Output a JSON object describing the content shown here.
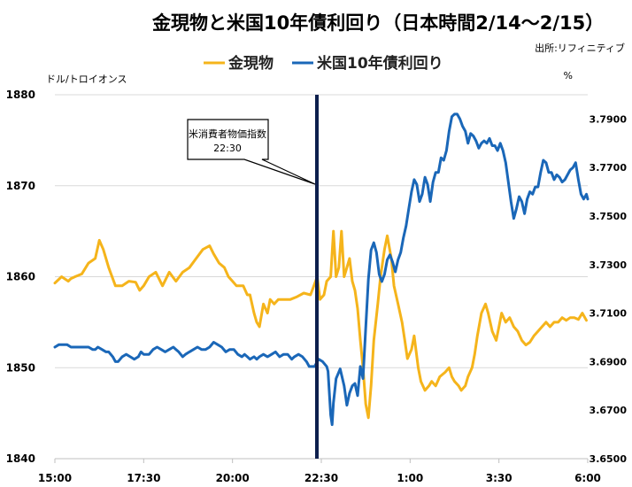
{
  "chart_data": {
    "type": "line",
    "title": "金現物と米国10年債利回り（日本時間2/14～2/15）",
    "source": "出所:リフィニティブ",
    "left_axis": {
      "label": "ドル/トロイオンス",
      "ylim": [
        1840,
        1880
      ],
      "ticks": [
        "1840",
        "1850",
        "1860",
        "1870",
        "1880"
      ]
    },
    "right_axis": {
      "label": "%",
      "ylim": [
        3.65,
        3.8
      ],
      "ticks": [
        "3.6500",
        "3.6700",
        "3.6900",
        "3.7100",
        "3.7300",
        "3.7500",
        "3.7700",
        "3.7900"
      ]
    },
    "x_ticks": [
      "15:00",
      "17:30",
      "20:00",
      "22:30",
      "1:00",
      "3:30",
      "6:00"
    ],
    "grid": true,
    "legend_position": "top",
    "annotation": {
      "lines": [
        "米消費者物価指数",
        "22:30"
      ],
      "x_label": "22:30",
      "color": "#0d1f4d"
    },
    "series": [
      {
        "name": "金現物",
        "axis": "left",
        "color": "#f5b41b",
        "points": [
          [
            0,
            1859.3
          ],
          [
            5,
            1860
          ],
          [
            10,
            1859.5
          ],
          [
            12,
            1859.8
          ],
          [
            15,
            1860
          ],
          [
            20,
            1860.3
          ],
          [
            25,
            1861.5
          ],
          [
            30,
            1862
          ],
          [
            33,
            1864
          ],
          [
            36,
            1863
          ],
          [
            40,
            1861
          ],
          [
            45,
            1859
          ],
          [
            50,
            1859
          ],
          [
            55,
            1859.5
          ],
          [
            60,
            1859.4
          ],
          [
            63,
            1858.5
          ],
          [
            66,
            1859
          ],
          [
            70,
            1860
          ],
          [
            75,
            1860.5
          ],
          [
            80,
            1859
          ],
          [
            85,
            1860.5
          ],
          [
            90,
            1859.5
          ],
          [
            95,
            1860.5
          ],
          [
            100,
            1861
          ],
          [
            105,
            1862
          ],
          [
            110,
            1863
          ],
          [
            115,
            1863.4
          ],
          [
            118,
            1862.5
          ],
          [
            122,
            1861.5
          ],
          [
            126,
            1861
          ],
          [
            129,
            1860
          ],
          [
            132,
            1859.5
          ],
          [
            135,
            1859
          ],
          [
            140,
            1859
          ],
          [
            143,
            1858
          ],
          [
            145,
            1858
          ],
          [
            148,
            1856
          ],
          [
            150,
            1855
          ],
          [
            152,
            1854.5
          ],
          [
            155,
            1857
          ],
          [
            158,
            1856
          ],
          [
            160,
            1857.5
          ],
          [
            163,
            1857
          ],
          [
            166,
            1857.5
          ],
          [
            170,
            1857.5
          ],
          [
            175,
            1857.5
          ],
          [
            180,
            1857.8
          ],
          [
            185,
            1858.2
          ],
          [
            190,
            1858
          ],
          [
            195,
            1860
          ],
          [
            197,
            1857.5
          ],
          [
            200,
            1858
          ],
          [
            202,
            1859.5
          ],
          [
            205,
            1860
          ],
          [
            207,
            1865
          ],
          [
            209,
            1860
          ],
          [
            211,
            1861
          ],
          [
            213,
            1865
          ],
          [
            215,
            1860
          ],
          [
            217,
            1861
          ],
          [
            219,
            1862
          ],
          [
            221,
            1859.5
          ],
          [
            223,
            1858.5
          ],
          [
            225,
            1856.5
          ],
          [
            227,
            1853
          ],
          [
            229,
            1850
          ],
          [
            231,
            1846
          ],
          [
            233,
            1844.5
          ],
          [
            235,
            1848
          ],
          [
            237,
            1853
          ],
          [
            240,
            1857
          ],
          [
            242,
            1860
          ],
          [
            245,
            1863
          ],
          [
            247,
            1864.5
          ],
          [
            250,
            1862
          ],
          [
            252,
            1859
          ],
          [
            255,
            1857
          ],
          [
            258,
            1855
          ],
          [
            260,
            1853
          ],
          [
            262,
            1851
          ],
          [
            265,
            1852
          ],
          [
            267,
            1853.5
          ],
          [
            270,
            1850
          ],
          [
            272,
            1848.5
          ],
          [
            275,
            1847.5
          ],
          [
            278,
            1848
          ],
          [
            280,
            1848.5
          ],
          [
            283,
            1848
          ],
          [
            286,
            1849
          ],
          [
            290,
            1849.5
          ],
          [
            293,
            1850
          ],
          [
            295,
            1849
          ],
          [
            297,
            1848.5
          ],
          [
            300,
            1848
          ],
          [
            302,
            1847.5
          ],
          [
            305,
            1848
          ],
          [
            307,
            1849
          ],
          [
            310,
            1850
          ],
          [
            312,
            1851.5
          ],
          [
            314,
            1853.5
          ],
          [
            317,
            1856
          ],
          [
            320,
            1857
          ],
          [
            322,
            1856
          ],
          [
            325,
            1854
          ],
          [
            328,
            1853
          ],
          [
            330,
            1854.5
          ],
          [
            332,
            1856
          ],
          [
            335,
            1855
          ],
          [
            338,
            1855.5
          ],
          [
            341,
            1854.5
          ],
          [
            344,
            1854
          ],
          [
            347,
            1853
          ],
          [
            350,
            1852.5
          ],
          [
            353,
            1852.8
          ],
          [
            356,
            1853.5
          ],
          [
            359,
            1854
          ],
          [
            362,
            1854.5
          ],
          [
            365,
            1855
          ],
          [
            368,
            1854.5
          ],
          [
            371,
            1855
          ],
          [
            374,
            1855
          ],
          [
            377,
            1855.5
          ],
          [
            380,
            1855.2
          ],
          [
            383,
            1855.5
          ],
          [
            386,
            1855.5
          ],
          [
            389,
            1855.3
          ],
          [
            392,
            1856
          ],
          [
            395,
            1855.2
          ]
        ]
      },
      {
        "name": "米国10年債利回り",
        "axis": "right",
        "color": "#1a67b8",
        "points": [
          [
            0,
            3.696
          ],
          [
            3,
            3.697
          ],
          [
            6,
            3.697
          ],
          [
            9,
            3.697
          ],
          [
            12,
            3.696
          ],
          [
            15,
            3.696
          ],
          [
            20,
            3.696
          ],
          [
            25,
            3.696
          ],
          [
            28,
            3.695
          ],
          [
            30,
            3.695
          ],
          [
            32,
            3.696
          ],
          [
            35,
            3.695
          ],
          [
            38,
            3.694
          ],
          [
            40,
            3.694
          ],
          [
            43,
            3.692
          ],
          [
            45,
            3.69
          ],
          [
            47,
            3.69
          ],
          [
            50,
            3.692
          ],
          [
            53,
            3.693
          ],
          [
            56,
            3.692
          ],
          [
            59,
            3.691
          ],
          [
            62,
            3.692
          ],
          [
            64,
            3.694
          ],
          [
            66,
            3.693
          ],
          [
            70,
            3.693
          ],
          [
            73,
            3.695
          ],
          [
            76,
            3.696
          ],
          [
            79,
            3.695
          ],
          [
            82,
            3.694
          ],
          [
            85,
            3.695
          ],
          [
            88,
            3.696
          ],
          [
            90,
            3.695
          ],
          [
            92,
            3.694
          ],
          [
            95,
            3.692
          ],
          [
            97,
            3.693
          ],
          [
            100,
            3.694
          ],
          [
            103,
            3.695
          ],
          [
            106,
            3.696
          ],
          [
            109,
            3.695
          ],
          [
            112,
            3.695
          ],
          [
            115,
            3.696
          ],
          [
            118,
            3.698
          ],
          [
            121,
            3.697
          ],
          [
            124,
            3.696
          ],
          [
            127,
            3.694
          ],
          [
            130,
            3.695
          ],
          [
            133,
            3.695
          ],
          [
            136,
            3.693
          ],
          [
            139,
            3.692
          ],
          [
            141,
            3.693
          ],
          [
            143,
            3.692
          ],
          [
            145,
            3.691
          ],
          [
            148,
            3.692
          ],
          [
            150,
            3.691
          ],
          [
            152,
            3.692
          ],
          [
            155,
            3.693
          ],
          [
            158,
            3.692
          ],
          [
            161,
            3.693
          ],
          [
            164,
            3.694
          ],
          [
            167,
            3.692
          ],
          [
            170,
            3.693
          ],
          [
            173,
            3.693
          ],
          [
            176,
            3.691
          ],
          [
            178,
            3.692
          ],
          [
            181,
            3.693
          ],
          [
            184,
            3.692
          ],
          [
            187,
            3.69
          ],
          [
            189,
            3.688
          ],
          [
            193,
            3.688
          ],
          [
            196,
            3.691
          ],
          [
            199,
            3.69
          ],
          [
            202,
            3.688
          ],
          [
            203,
            3.686
          ],
          [
            205,
            3.668
          ],
          [
            206,
            3.664
          ],
          [
            207,
            3.673
          ],
          [
            209,
            3.683
          ],
          [
            212,
            3.687
          ],
          [
            215,
            3.68
          ],
          [
            217,
            3.672
          ],
          [
            219,
            3.677
          ],
          [
            221,
            3.68
          ],
          [
            223,
            3.681
          ],
          [
            225,
            3.676
          ],
          [
            227,
            3.688
          ],
          [
            229,
            3.683
          ],
          [
            231,
            3.704
          ],
          [
            233,
            3.724
          ],
          [
            235,
            3.736
          ],
          [
            237,
            3.739
          ],
          [
            239,
            3.735
          ],
          [
            241,
            3.726
          ],
          [
            243,
            3.723
          ],
          [
            245,
            3.726
          ],
          [
            247,
            3.732
          ],
          [
            249,
            3.734
          ],
          [
            251,
            3.731
          ],
          [
            253,
            3.727
          ],
          [
            255,
            3.732
          ],
          [
            257,
            3.735
          ],
          [
            259,
            3.741
          ],
          [
            261,
            3.746
          ],
          [
            263,
            3.753
          ],
          [
            265,
            3.76
          ],
          [
            267,
            3.765
          ],
          [
            269,
            3.763
          ],
          [
            271,
            3.756
          ],
          [
            273,
            3.759
          ],
          [
            275,
            3.766
          ],
          [
            277,
            3.763
          ],
          [
            279,
            3.756
          ],
          [
            281,
            3.764
          ],
          [
            283,
            3.768
          ],
          [
            285,
            3.768
          ],
          [
            287,
            3.774
          ],
          [
            289,
            3.773
          ],
          [
            291,
            3.777
          ],
          [
            293,
            3.785
          ],
          [
            295,
            3.791
          ],
          [
            297,
            3.792
          ],
          [
            299,
            3.792
          ],
          [
            301,
            3.79
          ],
          [
            303,
            3.787
          ],
          [
            305,
            3.785
          ],
          [
            307,
            3.78
          ],
          [
            309,
            3.784
          ],
          [
            311,
            3.783
          ],
          [
            313,
            3.781
          ],
          [
            315,
            3.778
          ],
          [
            317,
            3.78
          ],
          [
            319,
            3.781
          ],
          [
            321,
            3.78
          ],
          [
            323,
            3.782
          ],
          [
            325,
            3.779
          ],
          [
            327,
            3.779
          ],
          [
            329,
            3.777
          ],
          [
            331,
            3.78
          ],
          [
            333,
            3.777
          ],
          [
            335,
            3.772
          ],
          [
            337,
            3.764
          ],
          [
            339,
            3.756
          ],
          [
            341,
            3.749
          ],
          [
            343,
            3.753
          ],
          [
            345,
            3.758
          ],
          [
            347,
            3.756
          ],
          [
            349,
            3.751
          ],
          [
            351,
            3.757
          ],
          [
            353,
            3.76
          ],
          [
            355,
            3.759
          ],
          [
            357,
            3.762
          ],
          [
            359,
            3.762
          ],
          [
            361,
            3.768
          ],
          [
            363,
            3.773
          ],
          [
            365,
            3.772
          ],
          [
            367,
            3.768
          ],
          [
            369,
            3.768
          ],
          [
            371,
            3.765
          ],
          [
            373,
            3.767
          ],
          [
            375,
            3.766
          ],
          [
            377,
            3.764
          ],
          [
            379,
            3.765
          ],
          [
            381,
            3.767
          ],
          [
            383,
            3.769
          ],
          [
            385,
            3.77
          ],
          [
            387,
            3.772
          ],
          [
            389,
            3.765
          ],
          [
            391,
            3.759
          ],
          [
            393,
            3.757
          ],
          [
            395,
            3.759
          ],
          [
            396,
            3.757
          ]
        ]
      }
    ]
  }
}
